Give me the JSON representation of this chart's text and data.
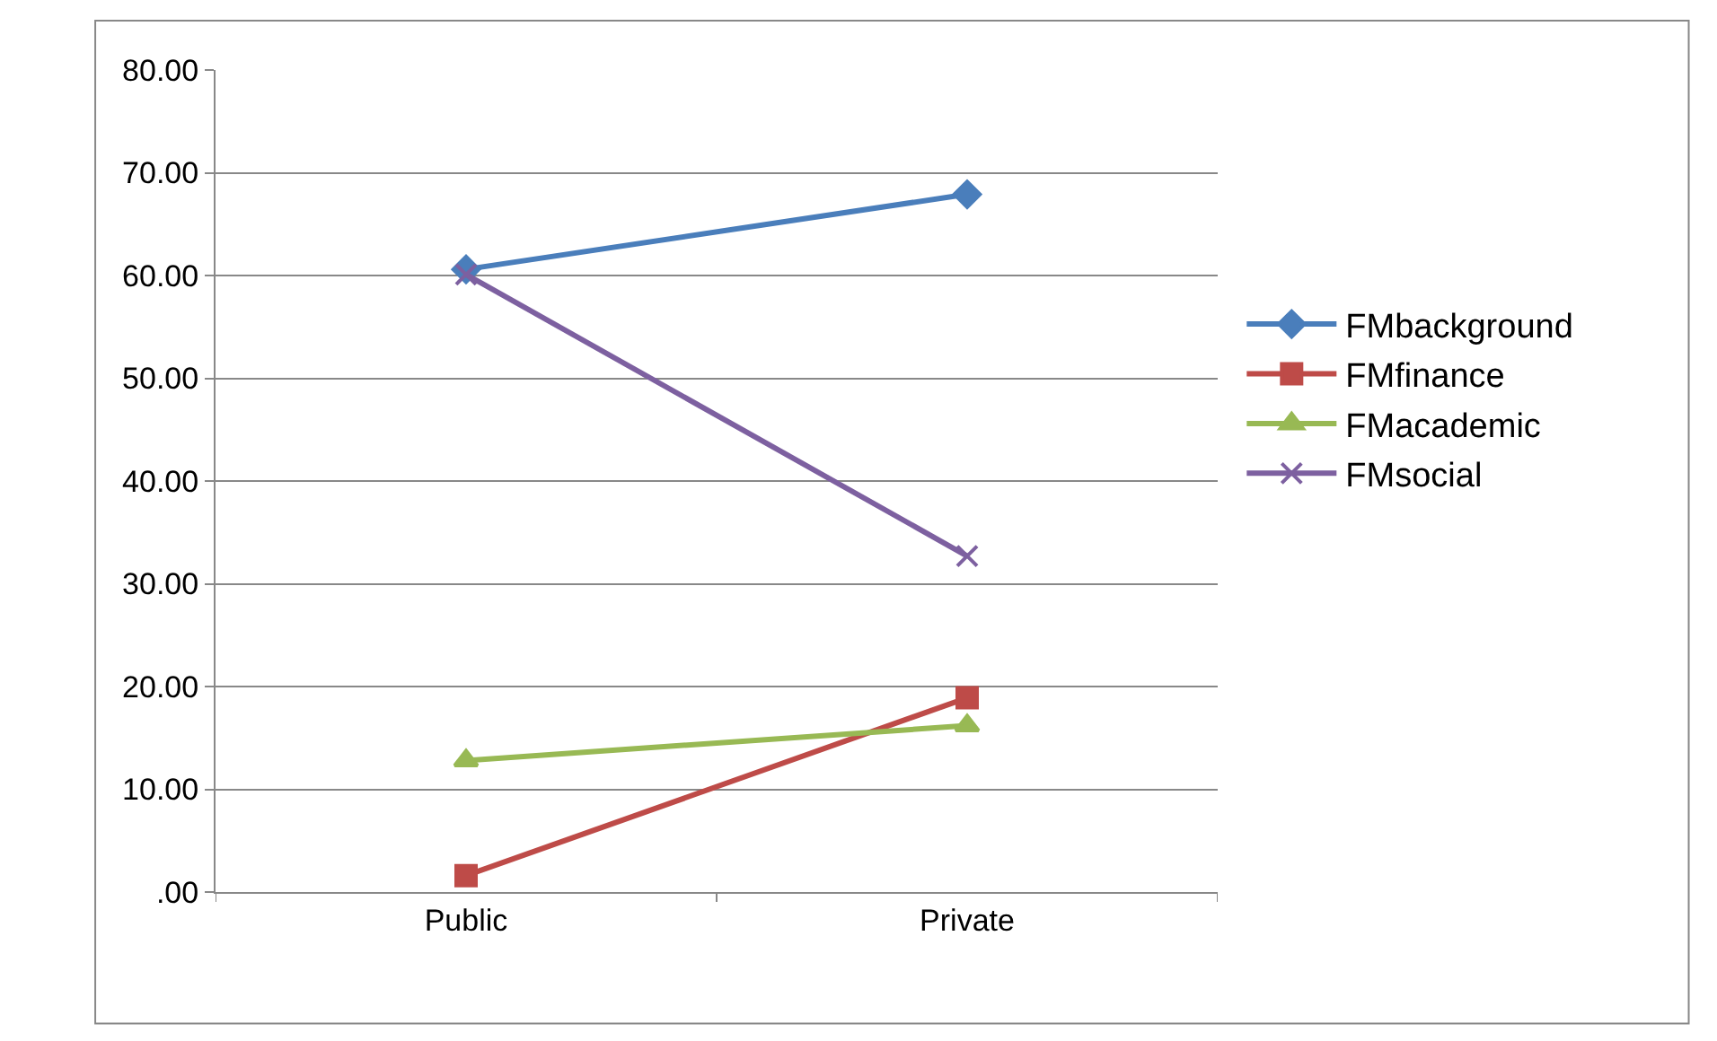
{
  "chart_data": {
    "type": "line",
    "categories": [
      "Public",
      "Private"
    ],
    "series": [
      {
        "name": "FMbackground",
        "color": "#4a7ebb",
        "marker": "diamond",
        "values": [
          60.6,
          67.9
        ]
      },
      {
        "name": "FMfinance",
        "color": "#be4b48",
        "marker": "square",
        "values": [
          1.6,
          18.9
        ]
      },
      {
        "name": "FMacademic",
        "color": "#98b954",
        "marker": "triangle",
        "values": [
          12.8,
          16.2
        ]
      },
      {
        "name": "FMsocial",
        "color": "#7d60a0",
        "marker": "cross",
        "values": [
          60.1,
          32.7
        ]
      }
    ],
    "ylim": [
      0,
      80
    ],
    "yticks": [
      {
        "value": 0,
        "label": ".00"
      },
      {
        "value": 10,
        "label": "10.00"
      },
      {
        "value": 20,
        "label": "20.00"
      },
      {
        "value": 30,
        "label": "30.00"
      },
      {
        "value": 40,
        "label": "40.00"
      },
      {
        "value": 50,
        "label": "50.00"
      },
      {
        "value": 60,
        "label": "60.00"
      },
      {
        "value": 70,
        "label": "70.00"
      },
      {
        "value": 80,
        "label": "80.00"
      }
    ],
    "grid": "y",
    "legend": "right"
  }
}
